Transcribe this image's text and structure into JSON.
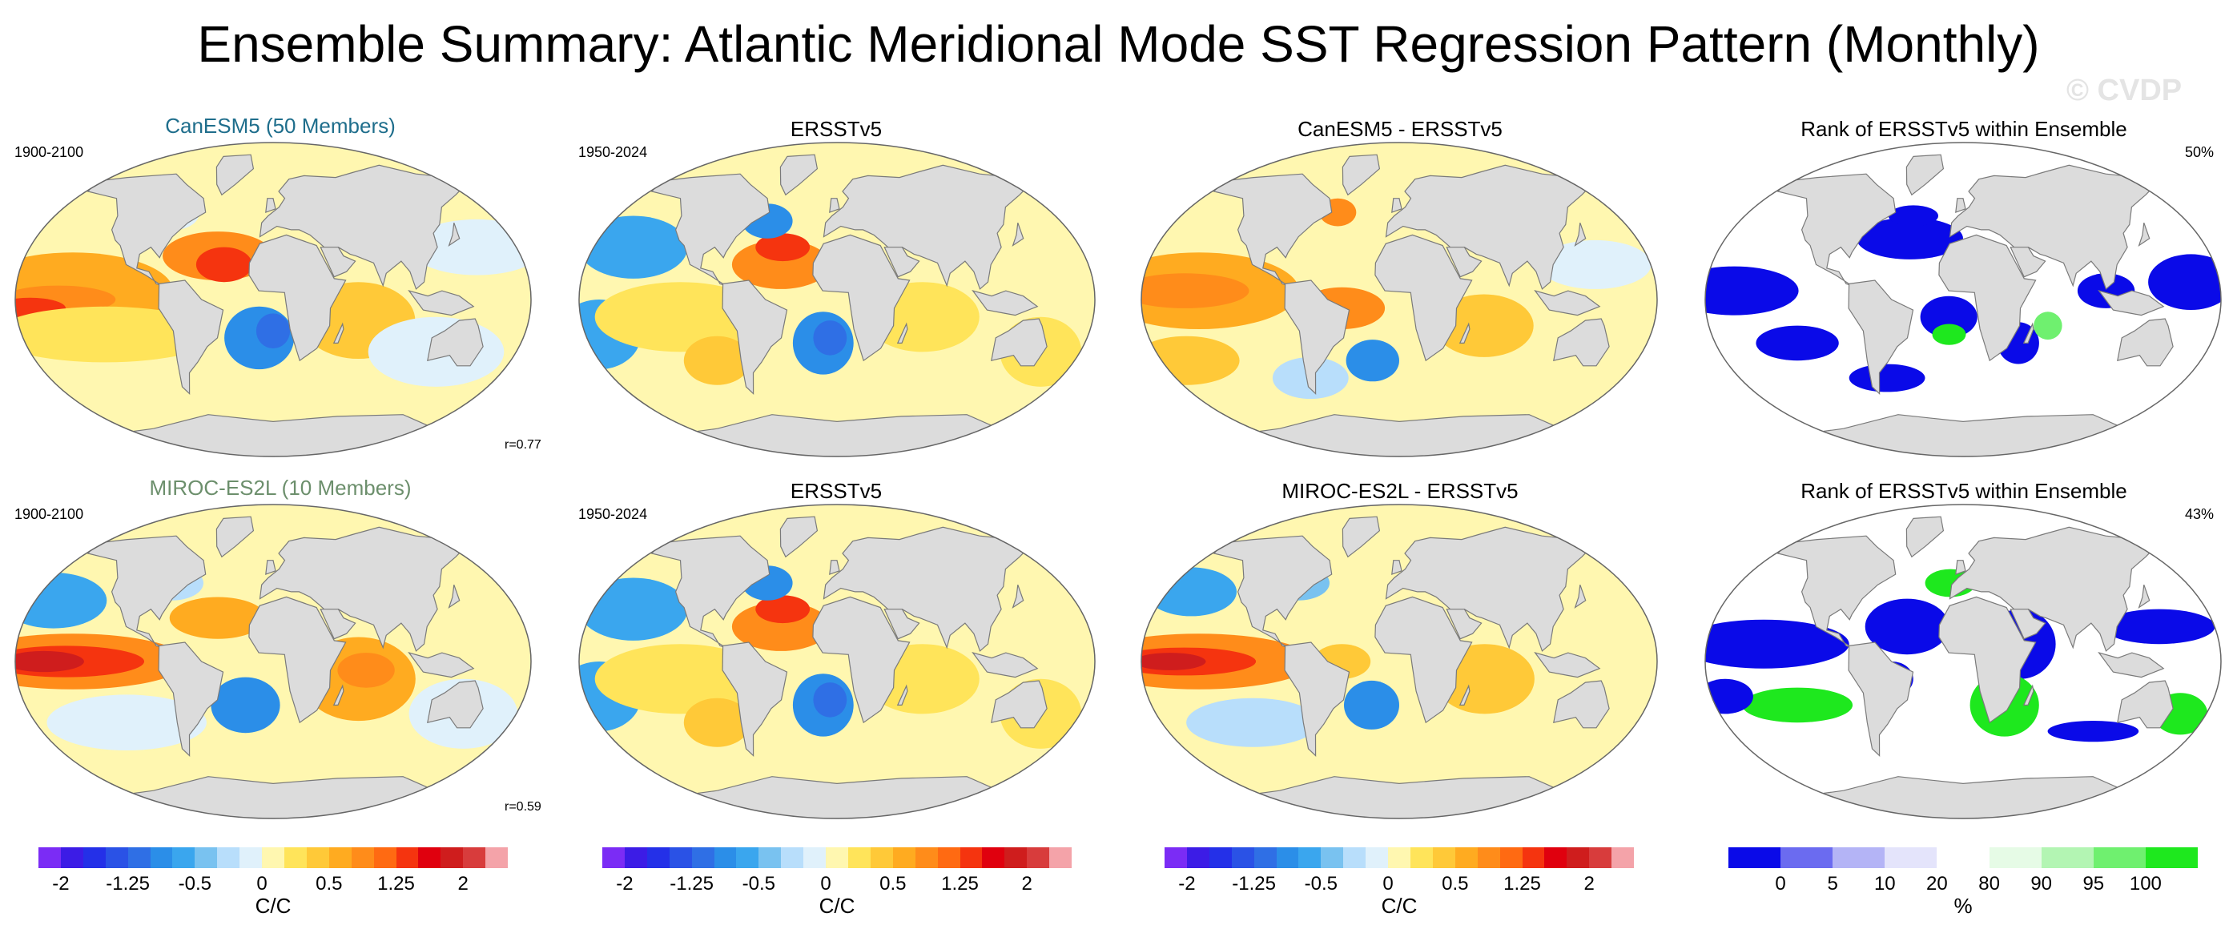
{
  "main_title": "Ensemble Summary: Atlantic Meridional Mode SST Regression Pattern (Monthly)",
  "watermark": "© CVDP",
  "chart_data": [
    {
      "type": "heatmap",
      "layout": "2x4 grid of global SST regression maps",
      "rows": [
        {
          "model": "CanESM5 (50 Members)",
          "model_color": "#1f6e8c",
          "model_period": "1900-2100",
          "obs_title": "ERSSTv5",
          "obs_period": "1950-2024",
          "diff_title": "CanESM5 - ERSSTv5",
          "rank_title": "Rank of ERSSTv5 within Ensemble",
          "pattern_correlation": "r=0.77",
          "rank_percent": "50%"
        },
        {
          "model": "MIROC-ES2L (10 Members)",
          "model_color": "#6c8f6c",
          "model_period": "1900-2100",
          "obs_title": "ERSSTv5",
          "obs_period": "1950-2024",
          "diff_title": "MIROC-ES2L - ERSSTv5",
          "rank_title": "Rank of ERSSTv5 within Ensemble",
          "pattern_correlation": "r=0.59",
          "rank_percent": "43%"
        }
      ],
      "regression_colorbar": {
        "units": "C/C",
        "tick_labels": [
          "-2",
          "-1.25",
          "-0.5",
          "0",
          "0.5",
          "1.25",
          "2"
        ],
        "tick_values": [
          -2,
          -1.25,
          -0.5,
          0,
          0.5,
          1.25,
          2
        ],
        "levels": [
          -2,
          -1.75,
          -1.5,
          -1.25,
          -1,
          -0.75,
          -0.5,
          -0.25,
          -0.1,
          0,
          0.1,
          0.25,
          0.5,
          0.75,
          1,
          1.25,
          1.5,
          1.75,
          2
        ],
        "colors": [
          "#7b2cf5",
          "#3c1ce6",
          "#2430e8",
          "#2a52e6",
          "#2f6fe5",
          "#2b8ee8",
          "#3aa6ee",
          "#79c2f0",
          "#b8defb",
          "#e0f1fb",
          "#fff7b0",
          "#ffe45a",
          "#ffc938",
          "#ffab20",
          "#ff8c1a",
          "#ff6a12",
          "#f5340f",
          "#e0000e",
          "#cf1d1d",
          "#d83c3c",
          "#f4a3a9"
        ]
      },
      "rank_colorbar": {
        "units": "%",
        "tick_labels": [
          "0",
          "5",
          "10",
          "20",
          "80",
          "90",
          "95",
          "100"
        ],
        "tick_values": [
          0,
          5,
          10,
          20,
          80,
          90,
          95,
          100
        ],
        "colors": [
          "#0a0ae8",
          "#6b6bf0",
          "#b4b4f6",
          "#e4e4fb",
          "#ffffff",
          "#e6fbe6",
          "#b3f5b3",
          "#6ff06f",
          "#1ee81e"
        ]
      }
    }
  ]
}
